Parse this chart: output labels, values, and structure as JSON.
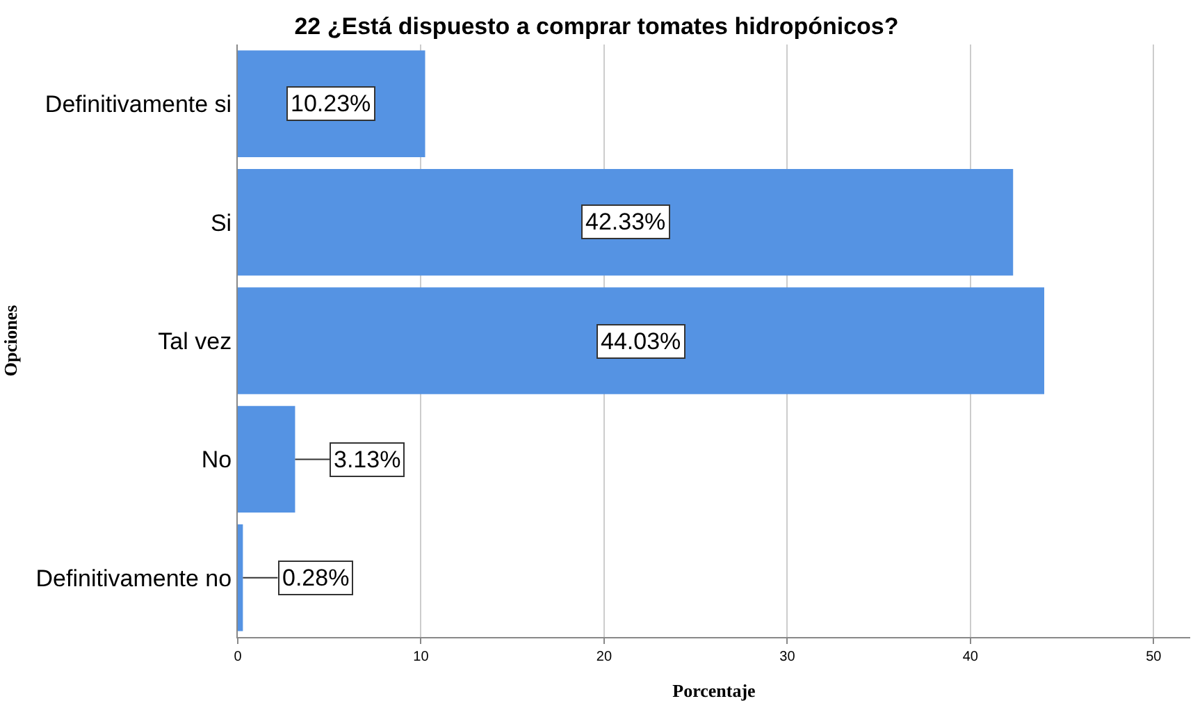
{
  "chart_data": {
    "type": "bar",
    "orientation": "horizontal",
    "title": "22 ¿Está dispuesto a comprar tomates hidropónicos?",
    "xlabel": "Porcentaje",
    "ylabel": "Opciones",
    "categories": [
      "Definitivamente si",
      "Si",
      "Tal vez",
      "No",
      "Definitivamente no"
    ],
    "values": [
      10.23,
      42.33,
      44.03,
      3.13,
      0.28
    ],
    "value_labels": [
      "10.23%",
      "42.33%",
      "44.03%",
      "3.13%",
      "0.28%"
    ],
    "color": "#5593e3",
    "xlim": [
      0,
      52
    ],
    "xticks": [
      0,
      10,
      20,
      30,
      40,
      50
    ],
    "grid": "x"
  }
}
